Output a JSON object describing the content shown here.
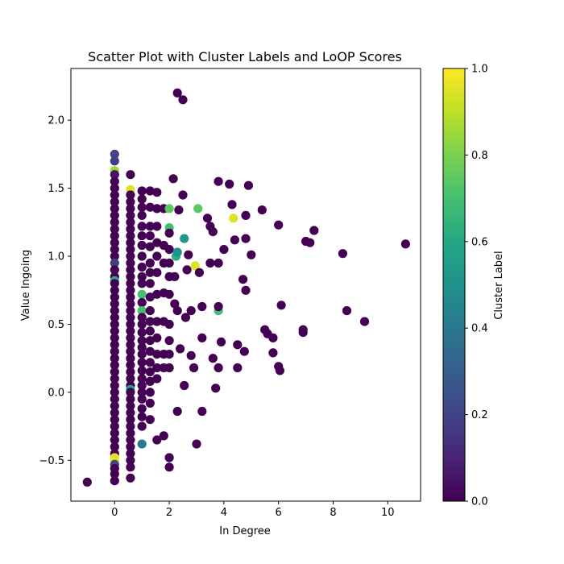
{
  "chart_data": {
    "type": "scatter",
    "title": "Scatter Plot with Cluster Labels and LoOP Scores",
    "xlabel": "In Degree",
    "ylabel": "Value Ingoing",
    "xlim": [
      -1.6,
      11.2
    ],
    "ylim": [
      -0.8,
      2.38
    ],
    "xticks": [
      "0",
      "2",
      "4",
      "6",
      "8",
      "10"
    ],
    "xtick_values": [
      0,
      2,
      4,
      6,
      8,
      10
    ],
    "yticks": [
      "−0.5",
      "0.0",
      "0.5",
      "1.0",
      "1.5",
      "2.0"
    ],
    "ytick_values": [
      -0.5,
      0.0,
      0.5,
      1.0,
      1.5,
      2.0
    ],
    "grid": false,
    "colorbar": {
      "label": "Cluster Label",
      "range": [
        0.0,
        1.0
      ],
      "ticks": [
        "0.0",
        "0.2",
        "0.4",
        "0.6",
        "0.8",
        "1.0"
      ],
      "tick_values": [
        0.0,
        0.2,
        0.4,
        0.6,
        0.8,
        1.0
      ],
      "colormap": "viridis"
    },
    "points": [
      [
        -1.0,
        -0.66,
        0.0
      ],
      [
        0.0,
        1.75,
        0.2
      ],
      [
        0.0,
        1.7,
        0.18
      ],
      [
        0.0,
        1.63,
        0.85
      ],
      [
        0.0,
        1.6,
        0.05
      ],
      [
        0.0,
        1.55,
        0.0
      ],
      [
        0.0,
        1.5,
        0.0
      ],
      [
        0.0,
        1.45,
        0.0
      ],
      [
        0.0,
        1.4,
        0.0
      ],
      [
        0.0,
        1.35,
        0.0
      ],
      [
        0.0,
        1.3,
        0.0
      ],
      [
        0.0,
        1.25,
        0.0
      ],
      [
        0.0,
        1.2,
        0.0
      ],
      [
        0.0,
        1.15,
        0.0
      ],
      [
        0.0,
        1.1,
        0.0
      ],
      [
        0.0,
        1.05,
        0.0
      ],
      [
        0.0,
        1.0,
        0.0
      ],
      [
        0.0,
        0.95,
        0.18
      ],
      [
        0.0,
        0.9,
        0.0
      ],
      [
        0.0,
        0.85,
        0.0
      ],
      [
        0.0,
        0.82,
        0.62
      ],
      [
        0.0,
        0.8,
        0.0
      ],
      [
        0.0,
        0.75,
        0.0
      ],
      [
        0.0,
        0.7,
        0.0
      ],
      [
        0.0,
        0.65,
        0.0
      ],
      [
        0.0,
        0.6,
        0.0
      ],
      [
        0.0,
        0.55,
        0.0
      ],
      [
        0.0,
        0.5,
        0.0
      ],
      [
        0.0,
        0.45,
        0.0
      ],
      [
        0.0,
        0.4,
        0.0
      ],
      [
        0.0,
        0.35,
        0.0
      ],
      [
        0.0,
        0.3,
        0.0
      ],
      [
        0.0,
        0.25,
        0.0
      ],
      [
        0.0,
        0.2,
        0.0
      ],
      [
        0.0,
        0.15,
        0.0
      ],
      [
        0.0,
        0.1,
        0.0
      ],
      [
        0.0,
        0.05,
        0.0
      ],
      [
        0.0,
        0.0,
        0.0
      ],
      [
        0.0,
        -0.05,
        0.0
      ],
      [
        0.0,
        -0.1,
        0.0
      ],
      [
        0.0,
        -0.15,
        0.0
      ],
      [
        0.0,
        -0.2,
        0.0
      ],
      [
        0.0,
        -0.25,
        0.0
      ],
      [
        0.0,
        -0.3,
        0.0
      ],
      [
        0.0,
        -0.35,
        0.0
      ],
      [
        0.0,
        -0.4,
        0.0
      ],
      [
        0.0,
        -0.45,
        0.0
      ],
      [
        0.0,
        -0.48,
        0.95
      ],
      [
        0.0,
        -0.5,
        0.95
      ],
      [
        0.0,
        -0.53,
        0.2
      ],
      [
        0.0,
        -0.56,
        0.0
      ],
      [
        0.0,
        -0.6,
        0.0
      ],
      [
        0.0,
        -0.65,
        0.0
      ],
      [
        0.58,
        1.6,
        0.0
      ],
      [
        0.58,
        1.49,
        0.95
      ],
      [
        0.58,
        1.45,
        0.0
      ],
      [
        0.58,
        1.4,
        0.0
      ],
      [
        0.58,
        1.35,
        0.0
      ],
      [
        0.58,
        1.3,
        0.0
      ],
      [
        0.58,
        1.25,
        0.0
      ],
      [
        0.58,
        1.2,
        0.0
      ],
      [
        0.58,
        1.15,
        0.0
      ],
      [
        0.58,
        1.1,
        0.0
      ],
      [
        0.58,
        1.05,
        0.0
      ],
      [
        0.58,
        1.0,
        0.0
      ],
      [
        0.58,
        0.95,
        0.0
      ],
      [
        0.58,
        0.9,
        0.0
      ],
      [
        0.58,
        0.85,
        0.0
      ],
      [
        0.58,
        0.8,
        0.0
      ],
      [
        0.58,
        0.75,
        0.0
      ],
      [
        0.58,
        0.7,
        0.0
      ],
      [
        0.58,
        0.65,
        0.0
      ],
      [
        0.58,
        0.6,
        0.0
      ],
      [
        0.58,
        0.55,
        0.0
      ],
      [
        0.58,
        0.5,
        0.0
      ],
      [
        0.58,
        0.45,
        0.0
      ],
      [
        0.58,
        0.4,
        0.0
      ],
      [
        0.58,
        0.35,
        0.0
      ],
      [
        0.58,
        0.3,
        0.0
      ],
      [
        0.58,
        0.25,
        0.0
      ],
      [
        0.58,
        0.2,
        0.0
      ],
      [
        0.58,
        0.15,
        0.0
      ],
      [
        0.58,
        0.1,
        0.0
      ],
      [
        0.58,
        0.05,
        0.0
      ],
      [
        0.58,
        0.02,
        0.6
      ],
      [
        0.58,
        0.0,
        0.0
      ],
      [
        0.58,
        -0.05,
        0.0
      ],
      [
        0.58,
        -0.1,
        0.0
      ],
      [
        0.58,
        -0.15,
        0.0
      ],
      [
        0.58,
        -0.2,
        0.0
      ],
      [
        0.58,
        -0.25,
        0.0
      ],
      [
        0.58,
        -0.3,
        0.0
      ],
      [
        0.58,
        -0.35,
        0.0
      ],
      [
        0.58,
        -0.4,
        0.0
      ],
      [
        0.58,
        -0.45,
        0.0
      ],
      [
        0.58,
        -0.5,
        0.0
      ],
      [
        0.58,
        -0.55,
        0.0
      ],
      [
        0.58,
        -0.63,
        0.0
      ],
      [
        1.0,
        1.48,
        0.0
      ],
      [
        1.0,
        1.42,
        0.0
      ],
      [
        1.0,
        1.36,
        0.0
      ],
      [
        1.0,
        1.3,
        0.0
      ],
      [
        1.0,
        1.22,
        0.0
      ],
      [
        1.0,
        1.15,
        0.0
      ],
      [
        1.0,
        1.08,
        0.0
      ],
      [
        1.0,
        1.0,
        0.0
      ],
      [
        1.0,
        0.92,
        0.0
      ],
      [
        1.0,
        0.85,
        0.0
      ],
      [
        1.0,
        0.8,
        0.0
      ],
      [
        1.0,
        0.72,
        0.7
      ],
      [
        1.0,
        0.66,
        0.0
      ],
      [
        1.0,
        0.6,
        0.7
      ],
      [
        1.0,
        0.55,
        0.0
      ],
      [
        1.0,
        0.5,
        0.0
      ],
      [
        1.0,
        0.44,
        0.0
      ],
      [
        1.0,
        0.38,
        0.0
      ],
      [
        1.0,
        0.33,
        0.0
      ],
      [
        1.0,
        0.28,
        0.0
      ],
      [
        1.0,
        0.22,
        0.0
      ],
      [
        1.0,
        0.16,
        0.0
      ],
      [
        1.0,
        0.1,
        0.0
      ],
      [
        1.0,
        0.05,
        0.0
      ],
      [
        1.0,
        0.0,
        0.0
      ],
      [
        1.0,
        -0.05,
        0.0
      ],
      [
        1.0,
        -0.12,
        0.0
      ],
      [
        1.0,
        -0.18,
        0.0
      ],
      [
        1.0,
        -0.25,
        0.0
      ],
      [
        1.0,
        -0.38,
        0.4
      ],
      [
        1.3,
        1.48,
        0.0
      ],
      [
        1.3,
        1.36,
        0.0
      ],
      [
        1.3,
        1.22,
        0.0
      ],
      [
        1.3,
        1.15,
        0.0
      ],
      [
        1.3,
        1.07,
        0.0
      ],
      [
        1.3,
        0.95,
        0.0
      ],
      [
        1.3,
        0.88,
        0.0
      ],
      [
        1.3,
        0.8,
        0.0
      ],
      [
        1.3,
        0.7,
        0.0
      ],
      [
        1.3,
        0.6,
        0.0
      ],
      [
        1.3,
        0.52,
        0.0
      ],
      [
        1.3,
        0.45,
        0.0
      ],
      [
        1.3,
        0.38,
        0.0
      ],
      [
        1.3,
        0.3,
        0.0
      ],
      [
        1.3,
        0.22,
        0.0
      ],
      [
        1.3,
        0.15,
        0.0
      ],
      [
        1.3,
        0.08,
        0.0
      ],
      [
        1.3,
        0.0,
        0.0
      ],
      [
        1.3,
        -0.08,
        0.0
      ],
      [
        1.3,
        -0.2,
        0.0
      ],
      [
        1.55,
        1.47,
        0.0
      ],
      [
        1.55,
        1.35,
        0.0
      ],
      [
        1.55,
        1.22,
        0.0
      ],
      [
        1.55,
        1.1,
        0.0
      ],
      [
        1.55,
        1.0,
        0.0
      ],
      [
        1.55,
        0.88,
        0.0
      ],
      [
        1.55,
        0.72,
        0.0
      ],
      [
        1.55,
        0.52,
        0.0
      ],
      [
        1.55,
        0.4,
        0.0
      ],
      [
        1.55,
        0.28,
        0.0
      ],
      [
        1.55,
        0.18,
        0.0
      ],
      [
        1.55,
        0.1,
        0.0
      ],
      [
        1.55,
        -0.35,
        0.0
      ],
      [
        1.8,
        1.35,
        0.0
      ],
      [
        1.8,
        1.08,
        0.0
      ],
      [
        1.8,
        0.95,
        0.0
      ],
      [
        1.8,
        0.73,
        0.0
      ],
      [
        1.8,
        0.52,
        0.0
      ],
      [
        1.8,
        0.28,
        0.0
      ],
      [
        1.8,
        0.18,
        0.0
      ],
      [
        1.8,
        -0.32,
        0.0
      ],
      [
        2.0,
        1.35,
        0.75
      ],
      [
        2.0,
        1.21,
        0.7
      ],
      [
        2.0,
        1.17,
        0.0
      ],
      [
        2.0,
        1.05,
        0.0
      ],
      [
        2.0,
        0.95,
        0.0
      ],
      [
        2.0,
        0.85,
        0.0
      ],
      [
        2.0,
        0.72,
        0.0
      ],
      [
        2.0,
        0.5,
        0.0
      ],
      [
        2.0,
        0.38,
        0.0
      ],
      [
        2.0,
        0.28,
        0.0
      ],
      [
        2.0,
        0.18,
        0.0
      ],
      [
        2.0,
        -0.48,
        0.0
      ],
      [
        2.0,
        -0.55,
        0.0
      ],
      [
        2.15,
        1.57,
        0.0
      ],
      [
        2.2,
        0.85,
        0.0
      ],
      [
        2.2,
        0.65,
        0.0
      ],
      [
        2.25,
        1.0,
        0.62
      ],
      [
        2.3,
        2.2,
        0.0
      ],
      [
        2.3,
        1.03,
        0.5
      ],
      [
        2.3,
        0.6,
        0.0
      ],
      [
        2.3,
        -0.14,
        0.0
      ],
      [
        2.35,
        1.34,
        0.0
      ],
      [
        2.4,
        0.32,
        0.0
      ],
      [
        2.5,
        2.15,
        0.0
      ],
      [
        2.5,
        1.45,
        0.0
      ],
      [
        2.55,
        1.13,
        0.52
      ],
      [
        2.55,
        0.05,
        0.0
      ],
      [
        2.6,
        0.55,
        0.0
      ],
      [
        2.65,
        0.9,
        0.0
      ],
      [
        2.7,
        1.01,
        0.0
      ],
      [
        2.8,
        0.6,
        0.0
      ],
      [
        2.8,
        0.27,
        0.0
      ],
      [
        2.9,
        0.18,
        0.0
      ],
      [
        2.95,
        0.93,
        0.95
      ],
      [
        3.0,
        -0.38,
        0.0
      ],
      [
        3.05,
        1.35,
        0.75
      ],
      [
        3.1,
        0.88,
        0.0
      ],
      [
        3.2,
        0.63,
        0.0
      ],
      [
        3.2,
        0.4,
        0.0
      ],
      [
        3.2,
        -0.14,
        0.0
      ],
      [
        3.4,
        1.28,
        0.0
      ],
      [
        3.5,
        1.22,
        0.0
      ],
      [
        3.5,
        0.95,
        0.0
      ],
      [
        3.6,
        1.18,
        0.0
      ],
      [
        3.6,
        0.25,
        0.0
      ],
      [
        3.7,
        0.03,
        0.0
      ],
      [
        3.8,
        1.55,
        0.0
      ],
      [
        3.8,
        0.95,
        0.0
      ],
      [
        3.8,
        0.6,
        0.7
      ],
      [
        3.8,
        0.63,
        0.0
      ],
      [
        3.8,
        0.18,
        0.0
      ],
      [
        3.9,
        0.37,
        0.0
      ],
      [
        4.0,
        1.05,
        0.0
      ],
      [
        4.2,
        1.53,
        0.0
      ],
      [
        4.3,
        1.38,
        0.0
      ],
      [
        4.35,
        1.28,
        0.95
      ],
      [
        4.4,
        1.12,
        0.0
      ],
      [
        4.5,
        0.35,
        0.0
      ],
      [
        4.5,
        0.18,
        0.0
      ],
      [
        4.7,
        0.83,
        0.0
      ],
      [
        4.75,
        0.3,
        0.0
      ],
      [
        4.8,
        1.3,
        0.0
      ],
      [
        4.8,
        0.75,
        0.0
      ],
      [
        4.8,
        1.13,
        0.0
      ],
      [
        4.9,
        1.52,
        0.0
      ],
      [
        5.0,
        1.01,
        0.0
      ],
      [
        5.4,
        1.34,
        0.0
      ],
      [
        5.5,
        0.46,
        0.0
      ],
      [
        5.6,
        0.43,
        0.0
      ],
      [
        5.8,
        0.4,
        0.0
      ],
      [
        5.8,
        0.29,
        0.0
      ],
      [
        6.0,
        1.23,
        0.0
      ],
      [
        6.0,
        0.19,
        0.0
      ],
      [
        6.05,
        0.16,
        0.0
      ],
      [
        6.1,
        0.64,
        0.0
      ],
      [
        6.9,
        0.46,
        0.0
      ],
      [
        6.9,
        0.44,
        0.0
      ],
      [
        7.0,
        1.11,
        0.0
      ],
      [
        7.15,
        1.1,
        0.0
      ],
      [
        7.3,
        1.19,
        0.0
      ],
      [
        8.35,
        1.02,
        0.0
      ],
      [
        8.5,
        0.6,
        0.0
      ],
      [
        9.15,
        0.52,
        0.0
      ],
      [
        10.65,
        1.09,
        0.0
      ]
    ]
  }
}
